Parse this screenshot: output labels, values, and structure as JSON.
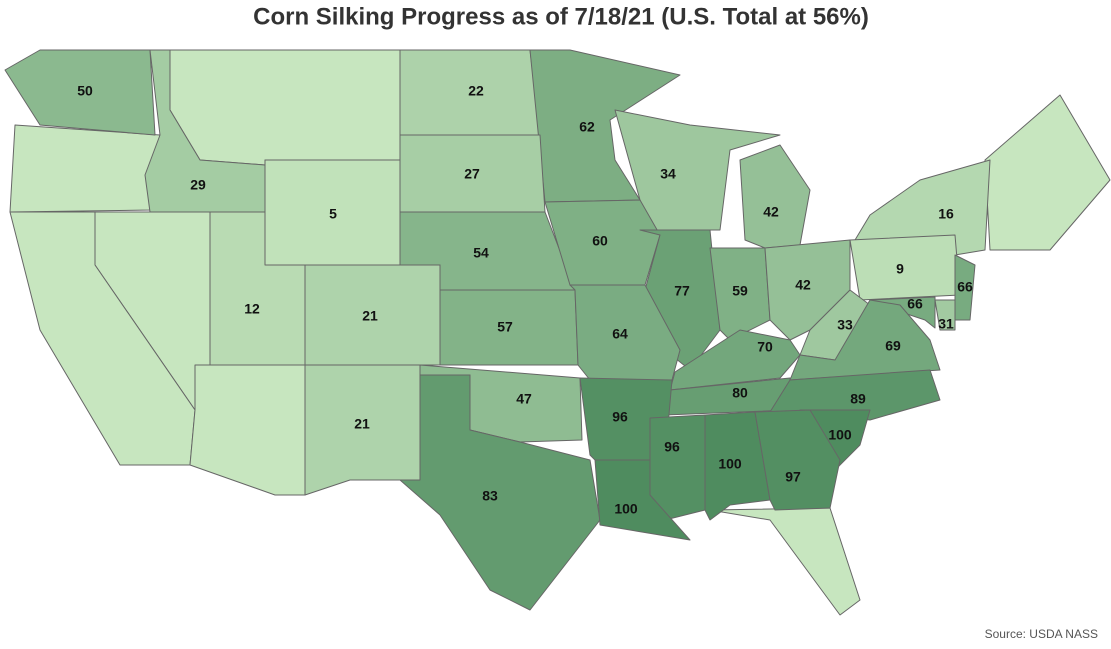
{
  "title": "Corn Silking Progress as of 7/18/21 (U.S. Total at 56%)",
  "source": "Source: USDA NASS",
  "state_values": [
    50,
    29,
    22,
    62,
    34,
    27,
    5,
    42,
    16,
    54,
    60,
    12,
    21,
    57,
    77,
    59,
    42,
    9,
    66,
    66,
    31,
    64,
    33,
    70,
    69,
    47,
    80,
    89,
    96,
    21,
    100,
    96,
    100,
    97,
    83,
    100
  ]
}
